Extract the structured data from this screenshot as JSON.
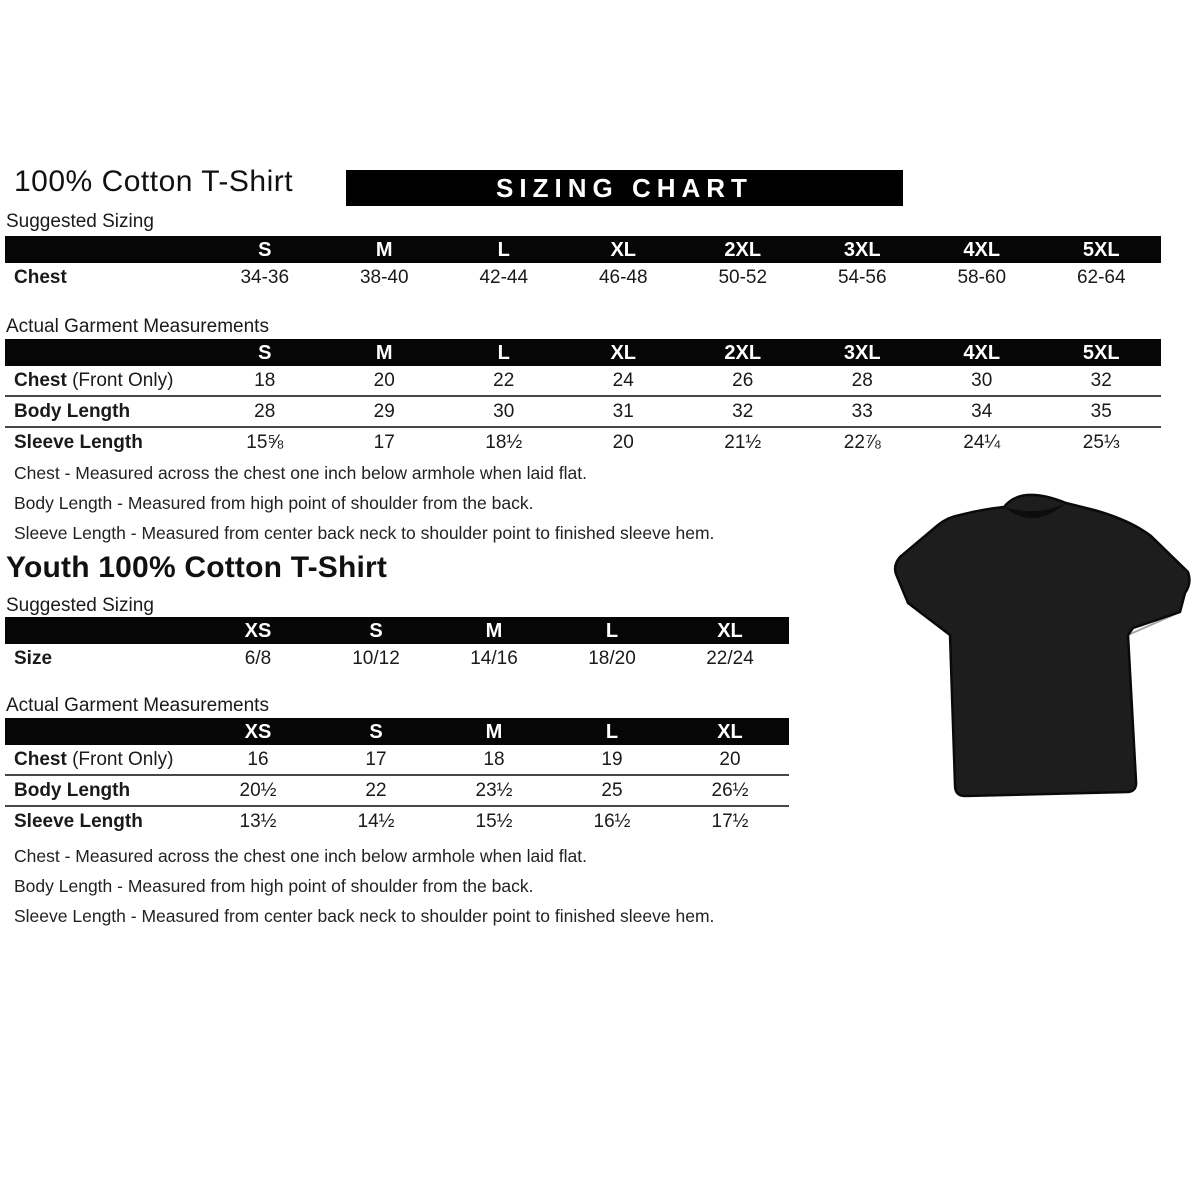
{
  "adult": {
    "title": "100% Cotton T-Shirt",
    "banner": "SIZING CHART",
    "suggested": {
      "label": "Suggested Sizing",
      "columns": [
        "S",
        "M",
        "L",
        "XL",
        "2XL",
        "3XL",
        "4XL",
        "5XL"
      ],
      "rows": [
        {
          "label": "Chest",
          "suffix": "",
          "values": [
            "34-36",
            "38-40",
            "42-44",
            "46-48",
            "50-52",
            "54-56",
            "58-60",
            "62-64"
          ]
        }
      ]
    },
    "actual": {
      "label": "Actual Garment Measurements",
      "columns": [
        "S",
        "M",
        "L",
        "XL",
        "2XL",
        "3XL",
        "4XL",
        "5XL"
      ],
      "rows": [
        {
          "label": "Chest",
          "suffix": " (Front Only)",
          "values": [
            "18",
            "20",
            "22",
            "24",
            "26",
            "28",
            "30",
            "32"
          ]
        },
        {
          "label": "Body Length",
          "suffix": "",
          "values": [
            "28",
            "29",
            "30",
            "31",
            "32",
            "33",
            "34",
            "35"
          ]
        },
        {
          "label": "Sleeve Length",
          "suffix": "",
          "values": [
            "15⅝",
            "17",
            "18½",
            "20",
            "21½",
            "22⅞",
            "24¼",
            "25⅓"
          ]
        }
      ]
    },
    "notes": [
      "Chest - Measured across the chest one inch below armhole when laid flat.",
      "Body Length - Measured from high point of shoulder from the back.",
      "Sleeve Length - Measured from center back neck to shoulder point to finished sleeve hem."
    ]
  },
  "youth": {
    "title": "Youth 100% Cotton T-Shirt",
    "suggested": {
      "label": "Suggested Sizing",
      "columns": [
        "XS",
        "S",
        "M",
        "L",
        "XL"
      ],
      "rows": [
        {
          "label": "Size",
          "suffix": "",
          "values": [
            "6/8",
            "10/12",
            "14/16",
            "18/20",
            "22/24"
          ]
        }
      ]
    },
    "actual": {
      "label": "Actual Garment Measurements",
      "columns": [
        "XS",
        "S",
        "M",
        "L",
        "XL"
      ],
      "rows": [
        {
          "label": "Chest",
          "suffix": " (Front Only)",
          "values": [
            "16",
            "17",
            "18",
            "19",
            "20"
          ]
        },
        {
          "label": "Body Length",
          "suffix": "",
          "values": [
            "20½",
            "22",
            "23½",
            "25",
            "26½"
          ]
        },
        {
          "label": "Sleeve Length",
          "suffix": "",
          "values": [
            "13½",
            "14½",
            "15½",
            "16½",
            "17½"
          ]
        }
      ]
    },
    "notes": [
      "Chest - Measured across the chest one inch below armhole when laid flat.",
      "Body Length - Measured from high point of shoulder from the back.",
      "Sleeve Length - Measured from center back neck to shoulder point to finished sleeve hem."
    ]
  },
  "tshirt": {
    "icon": "black-tshirt",
    "color": "#1d1d1d",
    "outline": "#0a0a0a"
  }
}
